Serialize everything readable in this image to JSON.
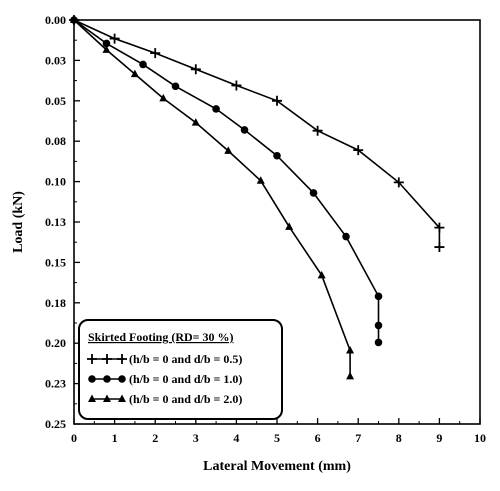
{
  "chart_data": {
    "type": "line",
    "title": "",
    "xlabel": "Lateral Movement (mm)",
    "ylabel": "Load (kN)",
    "xlim": [
      0,
      10
    ],
    "ylim": [
      0,
      0.25
    ],
    "y_inverted": true,
    "x_ticks": [
      "0",
      "1",
      "2",
      "3",
      "4",
      "5",
      "6",
      "7",
      "8",
      "9",
      "10"
    ],
    "y_tick_values": [
      0,
      0.025,
      0.05,
      0.075,
      0.1,
      0.125,
      0.15,
      0.175,
      0.2,
      0.225,
      0.25
    ],
    "y_ticks": [
      "0.00",
      "0.03",
      "0.05",
      "0.08",
      "0.10",
      "0.13",
      "0.15",
      "0.18",
      "0.20",
      "0.23",
      "0.25"
    ],
    "grid": false,
    "legend": {
      "placement": "bottom-left",
      "title": "Skirted Footing (RD= 30 %)"
    },
    "series": [
      {
        "name": "(h/b = 0 and d/b = 0.5)",
        "marker": "plus",
        "x": [
          0,
          1.0,
          2.0,
          3.0,
          4.0,
          5.0,
          6.0,
          7.0,
          8.0,
          9.0,
          9.0
        ],
        "y": [
          0,
          0.0115,
          0.0205,
          0.0305,
          0.0405,
          0.05,
          0.0685,
          0.0805,
          0.1005,
          0.1285,
          0.1405
        ]
      },
      {
        "name": "(h/b = 0 and d/b = 1.0)",
        "marker": "circle",
        "x": [
          0,
          0.8,
          1.7,
          2.5,
          3.5,
          4.2,
          5.0,
          5.9,
          6.7,
          7.5,
          7.5,
          7.5
        ],
        "y": [
          0,
          0.0145,
          0.0275,
          0.041,
          0.055,
          0.068,
          0.084,
          0.107,
          0.134,
          0.171,
          0.189,
          0.1995
        ]
      },
      {
        "name": "(h/b = 0 and d/b = 2.0)",
        "marker": "triangle",
        "x": [
          0,
          0.8,
          1.5,
          2.2,
          3.0,
          3.8,
          4.6,
          5.3,
          6.1,
          6.8,
          6.8
        ],
        "y": [
          0,
          0.0185,
          0.0335,
          0.0485,
          0.0635,
          0.081,
          0.0995,
          0.128,
          0.158,
          0.2045,
          0.2205
        ]
      }
    ]
  },
  "colors": {
    "line": "#000000",
    "background": "#ffffff"
  }
}
